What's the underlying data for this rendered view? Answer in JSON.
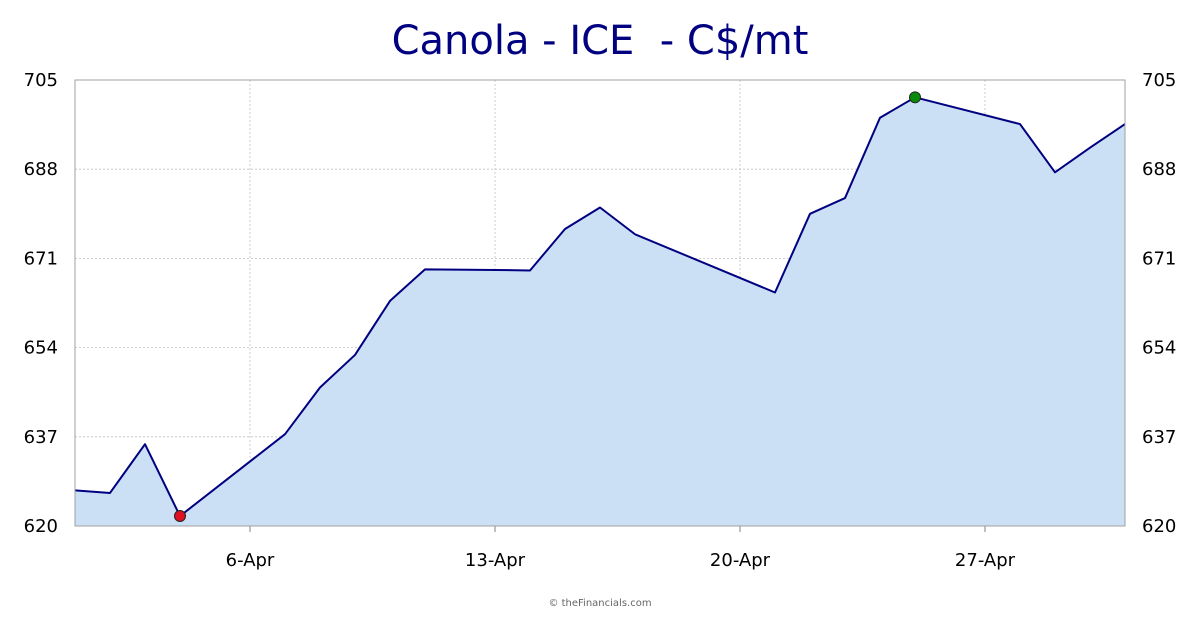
{
  "chart_data": {
    "type": "area",
    "title": "Canola - ICE  - C$/mt",
    "xlabel": "",
    "ylabel": "",
    "ylim": [
      620,
      705
    ],
    "yticks": [
      "620",
      "637",
      "654",
      "671",
      "688",
      "705"
    ],
    "xticks": [
      {
        "label": "6-Apr",
        "day": 6
      },
      {
        "label": "13-Apr",
        "day": 13
      },
      {
        "label": "20-Apr",
        "day": 20
      },
      {
        "label": "27-Apr",
        "day": 27
      }
    ],
    "xlim": [
      1,
      31
    ],
    "x": [
      1,
      2,
      3,
      4,
      7,
      8,
      9,
      10,
      11,
      13,
      14,
      15,
      16,
      17,
      21,
      22,
      23,
      24,
      25,
      28,
      29,
      30,
      31
    ],
    "values": [
      626.8,
      626.3,
      635.6,
      621.9,
      637.5,
      646.4,
      652.6,
      662.9,
      668.9,
      668.8,
      668.7,
      676.6,
      680.7,
      675.6,
      664.5,
      679.5,
      682.5,
      697.8,
      701.7,
      696.6,
      687.4,
      692.1,
      696.6
    ],
    "grid": true,
    "min_point": {
      "day": 4,
      "value": 621.9
    },
    "max_point": {
      "day": 25,
      "value": 701.7
    },
    "colors": {
      "line": "#000080",
      "fill": "#cce0f5",
      "min_marker": "#dd1122",
      "max_marker": "#0a8a0a",
      "grid": "#c0c0c0",
      "axis_text": "#000000",
      "title": "#000080"
    }
  },
  "credit": "© theFinancials.com"
}
